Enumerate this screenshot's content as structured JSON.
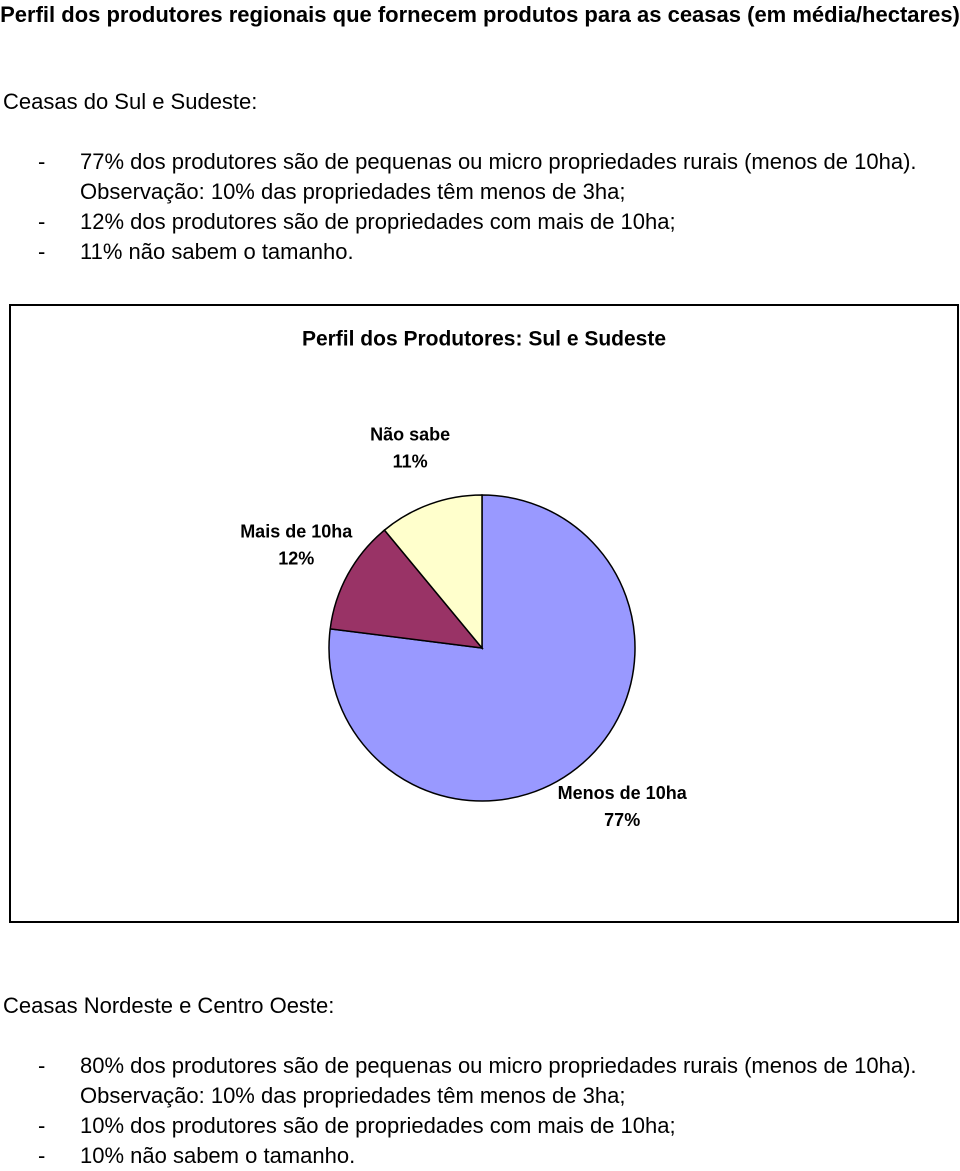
{
  "header": {
    "title": "Perfil dos produtores regionais que fornecem produtos para as ceasas (em média/hectares)"
  },
  "list_marker": "-",
  "sections": [
    {
      "heading": "Ceasas do Sul e Sudeste:",
      "items": [
        "77% dos produtores são de pequenas ou micro propriedades rurais (menos de 10ha). Observação: 10% das propriedades têm menos de 3ha;",
        "12% dos produtores são de propriedades com mais de 10ha;",
        "11% não sabem o tamanho."
      ]
    },
    {
      "heading": "Ceasas Nordeste e Centro Oeste:",
      "items": [
        "80% dos produtores são de pequenas ou micro propriedades rurais (menos de 10ha). Observação: 10% das propriedades têm menos de 3ha;",
        "10% dos produtores são de propriedades com mais de 10ha;",
        "10% não sabem o tamanho."
      ]
    }
  ],
  "chart_data": {
    "type": "pie",
    "title": "Perfil dos Produtores: Sul e Sudeste",
    "categories": [
      "Menos de 10ha",
      "Mais de 10ha",
      "Não sabe"
    ],
    "values": [
      77,
      12,
      11
    ],
    "value_labels": [
      "77%",
      "12%",
      "11%"
    ],
    "colors": [
      "#9999ff",
      "#993366",
      "#ffffcc"
    ]
  }
}
